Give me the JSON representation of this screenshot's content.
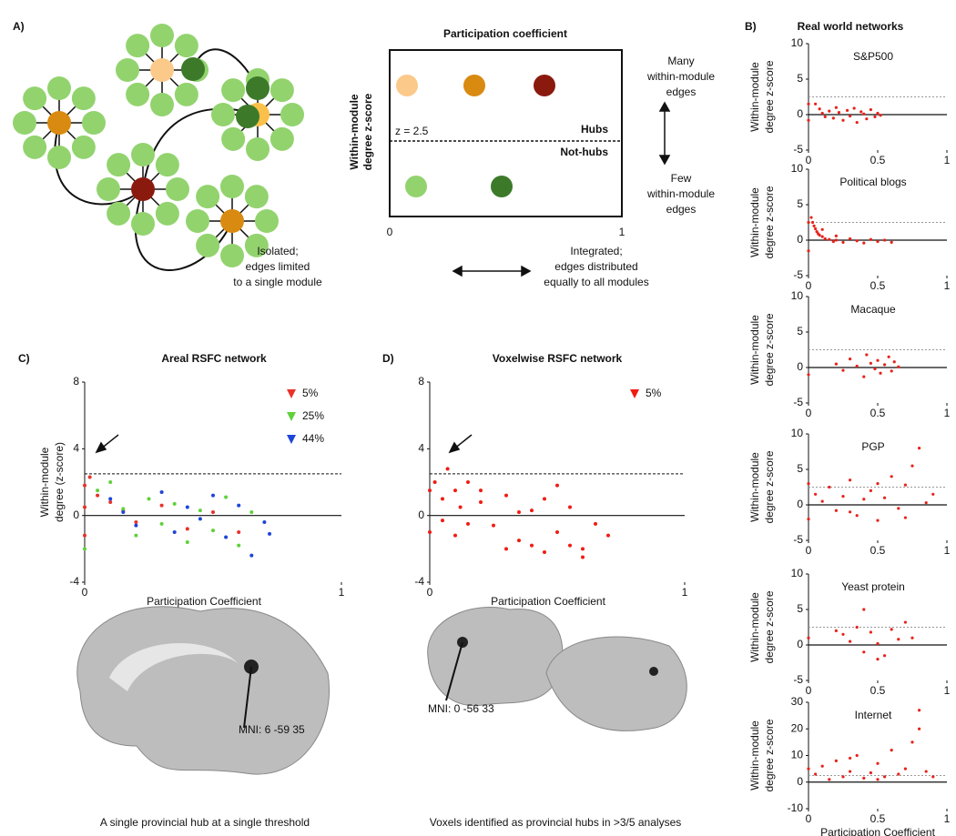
{
  "labels": [
    "A)",
    "B)",
    "C)",
    "D)"
  ],
  "panel_a": {
    "title": "Participation coefficient",
    "y_label": [
      "Within-module",
      "degree z-score"
    ],
    "threshold_label": "z = 2.5",
    "hubs": "Hubs",
    "not_hubs": "Not-hubs",
    "x_min": "0",
    "x_max": "1",
    "many": [
      "Many",
      "within-module",
      "edges"
    ],
    "few": [
      "Few",
      "within-module",
      "edges"
    ],
    "isolated": [
      "Isolated;",
      "edges limited",
      "to a single module"
    ],
    "integrated": [
      "Integrated;",
      "edges distributed",
      "equally to all modules"
    ]
  },
  "panel_b": {
    "title": "Real world networks"
  },
  "panel_c": {
    "annotation": "MNI: 6 -59 35",
    "caption": "A single provincial hub at a single threshold"
  },
  "panel_d": {
    "annotation": "MNI: 0 -56 33",
    "caption": "Voxels identified as provincial hubs in >3/5 analyses"
  },
  "chart_data": [
    {
      "type": "scatter",
      "title": "Areal RSFC network",
      "x_label": "Participation Coefficient",
      "y_label": [
        "Within-module",
        "degree (z-score)"
      ],
      "xlim": [
        0,
        1
      ],
      "ylim": [
        -4,
        8
      ],
      "xticks": [
        0,
        1
      ],
      "yticks": [
        -4,
        0,
        4,
        8
      ],
      "hline": 2.5,
      "legend": "upper right",
      "series": [
        {
          "name": "5%",
          "color": "#e8322a",
          "x": [
            0,
            0,
            0,
            0.02,
            0.05,
            0.1,
            0.15,
            0.2,
            0.3,
            0.4,
            0.5,
            0.6
          ],
          "values": [
            1.8,
            0.5,
            -1.2,
            2.3,
            1.2,
            0.8,
            0.3,
            -0.4,
            0.6,
            -0.8,
            0.2,
            -1.0
          ]
        },
        {
          "name": "25%",
          "color": "#5fd13a",
          "x": [
            0,
            0.05,
            0.1,
            0.15,
            0.2,
            0.25,
            0.3,
            0.35,
            0.4,
            0.45,
            0.5,
            0.55,
            0.6,
            0.65
          ],
          "values": [
            -2.0,
            1.5,
            2.0,
            0.4,
            -1.2,
            1.0,
            -0.5,
            0.7,
            -1.6,
            0.3,
            -0.9,
            1.1,
            -1.8,
            0.2
          ]
        },
        {
          "name": "44%",
          "color": "#1e44d8",
          "x": [
            0.1,
            0.15,
            0.2,
            0.3,
            0.35,
            0.4,
            0.45,
            0.5,
            0.55,
            0.6,
            0.65,
            0.7,
            0.72
          ],
          "values": [
            1.0,
            0.2,
            -0.6,
            1.4,
            -1.0,
            0.5,
            -0.2,
            1.2,
            -1.3,
            0.6,
            -2.4,
            -0.4,
            -1.1
          ]
        }
      ]
    },
    {
      "type": "scatter",
      "title": "Voxelwise RSFC network",
      "x_label": "Participation Coefficient",
      "xlim": [
        0,
        1
      ],
      "ylim": [
        -4,
        8
      ],
      "xticks": [
        0,
        1
      ],
      "yticks": [
        -4,
        0,
        4,
        8
      ],
      "hline": 2.5,
      "legend": "upper right",
      "series": [
        {
          "name": "5%",
          "color": "#f01c14",
          "x": [
            0,
            0,
            0.02,
            0.05,
            0.07,
            0.1,
            0.12,
            0.15,
            0.2,
            0.25,
            0.3,
            0.35,
            0.4,
            0.45,
            0.5,
            0.55,
            0.6,
            0.65,
            0.7,
            0.1,
            0.2,
            0.3,
            0.4,
            0.5,
            0.6,
            0.05,
            0.15,
            0.35,
            0.45,
            0.55
          ],
          "values": [
            1.5,
            -1.0,
            2.0,
            1.0,
            2.8,
            1.5,
            0.5,
            -0.5,
            0.8,
            -0.6,
            1.2,
            -1.5,
            0.3,
            1.0,
            -1.0,
            0.5,
            -2.0,
            -0.5,
            -1.2,
            -1.2,
            1.5,
            -2.0,
            -1.8,
            1.8,
            -2.5,
            -0.3,
            2.0,
            0.2,
            -2.2,
            -1.8
          ]
        }
      ]
    },
    {
      "type": "scatter",
      "title": "S&P500",
      "y_label": [
        "Within-module",
        "degree z-score"
      ],
      "xlim": [
        0,
        1
      ],
      "ylim": [
        -5,
        10
      ],
      "xticks": [
        0,
        0.5,
        1
      ],
      "yticks": [
        -5,
        0,
        5,
        10
      ],
      "hline": 2.5,
      "color": "#e8221a",
      "x": [
        0,
        0,
        0.05,
        0.08,
        0.1,
        0.12,
        0.15,
        0.18,
        0.2,
        0.22,
        0.25,
        0.28,
        0.3,
        0.33,
        0.35,
        0.38,
        0.4,
        0.42,
        0.45,
        0.48,
        0.5,
        0.52
      ],
      "values": [
        1.5,
        -0.8,
        1.5,
        0.8,
        0.2,
        -0.3,
        0.5,
        -0.5,
        1.0,
        0.3,
        -0.8,
        0.6,
        -0.2,
        0.9,
        -1.1,
        0.4,
        0.1,
        -0.6,
        0.7,
        -0.3,
        0.2,
        -0.1
      ]
    },
    {
      "type": "scatter",
      "title": "Political blogs",
      "y_label": [
        "Within-module",
        "degree z-score"
      ],
      "xlim": [
        0,
        1
      ],
      "ylim": [
        -5,
        10
      ],
      "xticks": [
        0,
        0.5,
        1
      ],
      "yticks": [
        -5,
        0,
        5,
        10
      ],
      "hline": 2.5,
      "color": "#e8221a",
      "x": [
        0,
        0,
        0.02,
        0.03,
        0.04,
        0.05,
        0.06,
        0.07,
        0.08,
        0.1,
        0.12,
        0.15,
        0.18,
        0.2,
        0.25,
        0.3,
        0.35,
        0.4,
        0.45,
        0.5,
        0.55,
        0.6,
        0.1,
        0.2
      ],
      "values": [
        2.5,
        -1.5,
        3.2,
        2.5,
        2.0,
        1.6,
        1.2,
        0.9,
        0.7,
        0.5,
        0.2,
        0.1,
        -0.2,
        0.0,
        -0.3,
        0.2,
        -0.1,
        -0.4,
        0.1,
        -0.2,
        0.0,
        -0.3,
        1.5,
        0.6
      ]
    },
    {
      "type": "scatter",
      "title": "Macaque",
      "y_label": [
        "Within-module",
        "degree z-score"
      ],
      "xlim": [
        0,
        1
      ],
      "ylim": [
        -5,
        10
      ],
      "xticks": [
        0,
        0.5,
        1
      ],
      "yticks": [
        -5,
        0,
        5,
        10
      ],
      "hline": 2.5,
      "color": "#e8221a",
      "x": [
        0,
        0.2,
        0.25,
        0.3,
        0.35,
        0.4,
        0.42,
        0.45,
        0.48,
        0.5,
        0.52,
        0.55,
        0.58,
        0.6,
        0.62,
        0.65
      ],
      "values": [
        -1.0,
        0.5,
        -0.4,
        1.2,
        0.2,
        -1.3,
        1.8,
        0.6,
        -0.2,
        1.0,
        -0.8,
        0.4,
        1.5,
        -0.5,
        0.8,
        0.1
      ]
    },
    {
      "type": "scatter",
      "title": "PGP",
      "y_label": [
        "Within-module",
        "degree z-score"
      ],
      "xlim": [
        0,
        1
      ],
      "ylim": [
        -5,
        10
      ],
      "xticks": [
        0,
        0.5,
        1
      ],
      "yticks": [
        -5,
        0,
        5,
        10
      ],
      "hline": 2.5,
      "color": "#e8221a",
      "x": [
        0,
        0,
        0.05,
        0.1,
        0.15,
        0.2,
        0.25,
        0.3,
        0.35,
        0.4,
        0.45,
        0.5,
        0.55,
        0.6,
        0.65,
        0.7,
        0.75,
        0.8,
        0.85,
        0.9,
        0.3,
        0.5,
        0.7
      ],
      "values": [
        3.0,
        -2.0,
        1.5,
        0.5,
        2.5,
        -0.8,
        1.2,
        3.5,
        -1.5,
        0.8,
        2.0,
        -2.2,
        1.0,
        4.0,
        -0.5,
        2.8,
        5.5,
        8.0,
        0.3,
        1.5,
        -1.0,
        3.0,
        -1.8
      ]
    },
    {
      "type": "scatter",
      "title": "Yeast protein",
      "y_label": [
        "Within-module",
        "degree z-score"
      ],
      "xlim": [
        0,
        1
      ],
      "ylim": [
        -5,
        10
      ],
      "xticks": [
        0,
        0.5,
        1
      ],
      "yticks": [
        -5,
        0,
        5,
        10
      ],
      "hline": 2.5,
      "color": "#e8221a",
      "x": [
        0,
        0.2,
        0.25,
        0.3,
        0.35,
        0.4,
        0.45,
        0.5,
        0.55,
        0.6,
        0.65,
        0.7,
        0.75,
        0.4,
        0.5
      ],
      "values": [
        1.0,
        2.0,
        1.5,
        0.5,
        2.5,
        -1.0,
        1.8,
        0.2,
        -1.5,
        2.2,
        0.8,
        3.2,
        1.0,
        5.0,
        -2.0
      ]
    },
    {
      "type": "scatter",
      "title": "Internet",
      "x_label": "Participation Coefficient",
      "y_label": [
        "Within-module",
        "degree z-score"
      ],
      "xlim": [
        0,
        1
      ],
      "ylim": [
        -10,
        30
      ],
      "xticks": [
        0,
        0.5,
        1
      ],
      "yticks": [
        -10,
        0,
        10,
        20,
        30
      ],
      "hline": 2.5,
      "color": "#e8221a",
      "x": [
        0,
        0.05,
        0.1,
        0.15,
        0.2,
        0.25,
        0.3,
        0.35,
        0.4,
        0.45,
        0.5,
        0.55,
        0.6,
        0.65,
        0.7,
        0.75,
        0.8,
        0.85,
        0.9,
        0.3,
        0.5,
        0.8
      ],
      "values": [
        5.0,
        3.0,
        6.0,
        1.0,
        8.0,
        2.0,
        4.0,
        10.0,
        1.5,
        3.5,
        7.0,
        2.0,
        12.0,
        3.0,
        5.0,
        15.0,
        27.0,
        4.0,
        2.0,
        9.0,
        1.0,
        20.0
      ]
    }
  ]
}
